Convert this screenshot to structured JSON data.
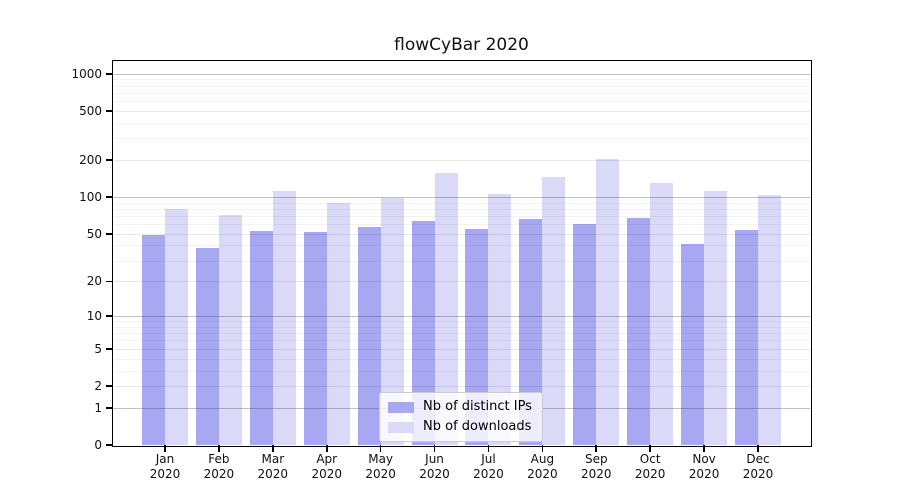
{
  "chart_data": {
    "type": "bar",
    "title": "flowCyBar 2020",
    "x_axis": {
      "months": [
        "Jan",
        "Feb",
        "Mar",
        "Apr",
        "May",
        "Jun",
        "Jul",
        "Aug",
        "Sep",
        "Oct",
        "Nov",
        "Dec"
      ],
      "year": "2020"
    },
    "y_axis": {
      "scale": "log1p",
      "ticks": [
        0,
        1,
        2,
        5,
        10,
        20,
        50,
        100,
        200,
        500,
        1000
      ],
      "decade_ticks": [
        1,
        10,
        100,
        1000
      ],
      "top": 1270,
      "grid": true
    },
    "series": [
      {
        "name": "Nb of distinct IPs",
        "color": "#a7a7f2",
        "values": [
          49,
          38,
          53,
          52,
          57,
          64,
          55,
          66,
          60,
          67,
          41,
          54
        ]
      },
      {
        "name": "Nb of downloads",
        "color": "#dadaf8",
        "values": [
          80,
          72,
          112,
          89,
          98,
          158,
          105,
          145,
          205,
          130,
          113,
          104
        ]
      }
    ],
    "legend": {
      "position": "lower center",
      "items": [
        "Nb of distinct IPs",
        "Nb of downloads"
      ]
    }
  }
}
